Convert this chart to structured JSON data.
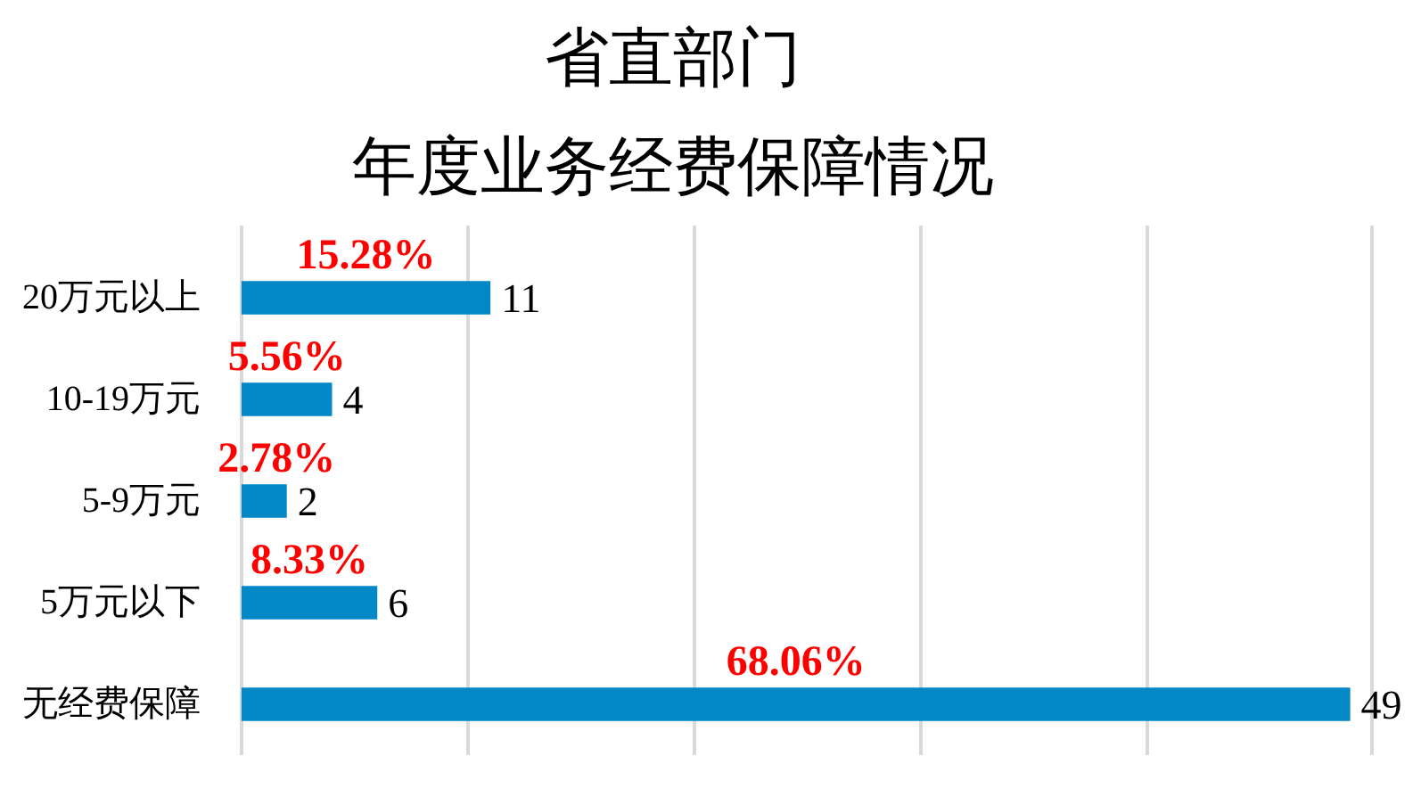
{
  "chart_data": {
    "type": "bar",
    "orientation": "horizontal",
    "title": "省直部门",
    "subtitle": "年度业务经费保障情况",
    "categories": [
      "20万元以上",
      "10-19万元",
      "5-9万元",
      "5万元以下",
      "无经费保障"
    ],
    "values": [
      11,
      4,
      2,
      6,
      49
    ],
    "color": "#0288c6",
    "data_labels": true,
    "annotations": [
      "15.28%",
      "5.56%",
      "2.78%",
      "8.33%",
      "68.06%"
    ],
    "grid": "x",
    "tick_labels": "y"
  }
}
